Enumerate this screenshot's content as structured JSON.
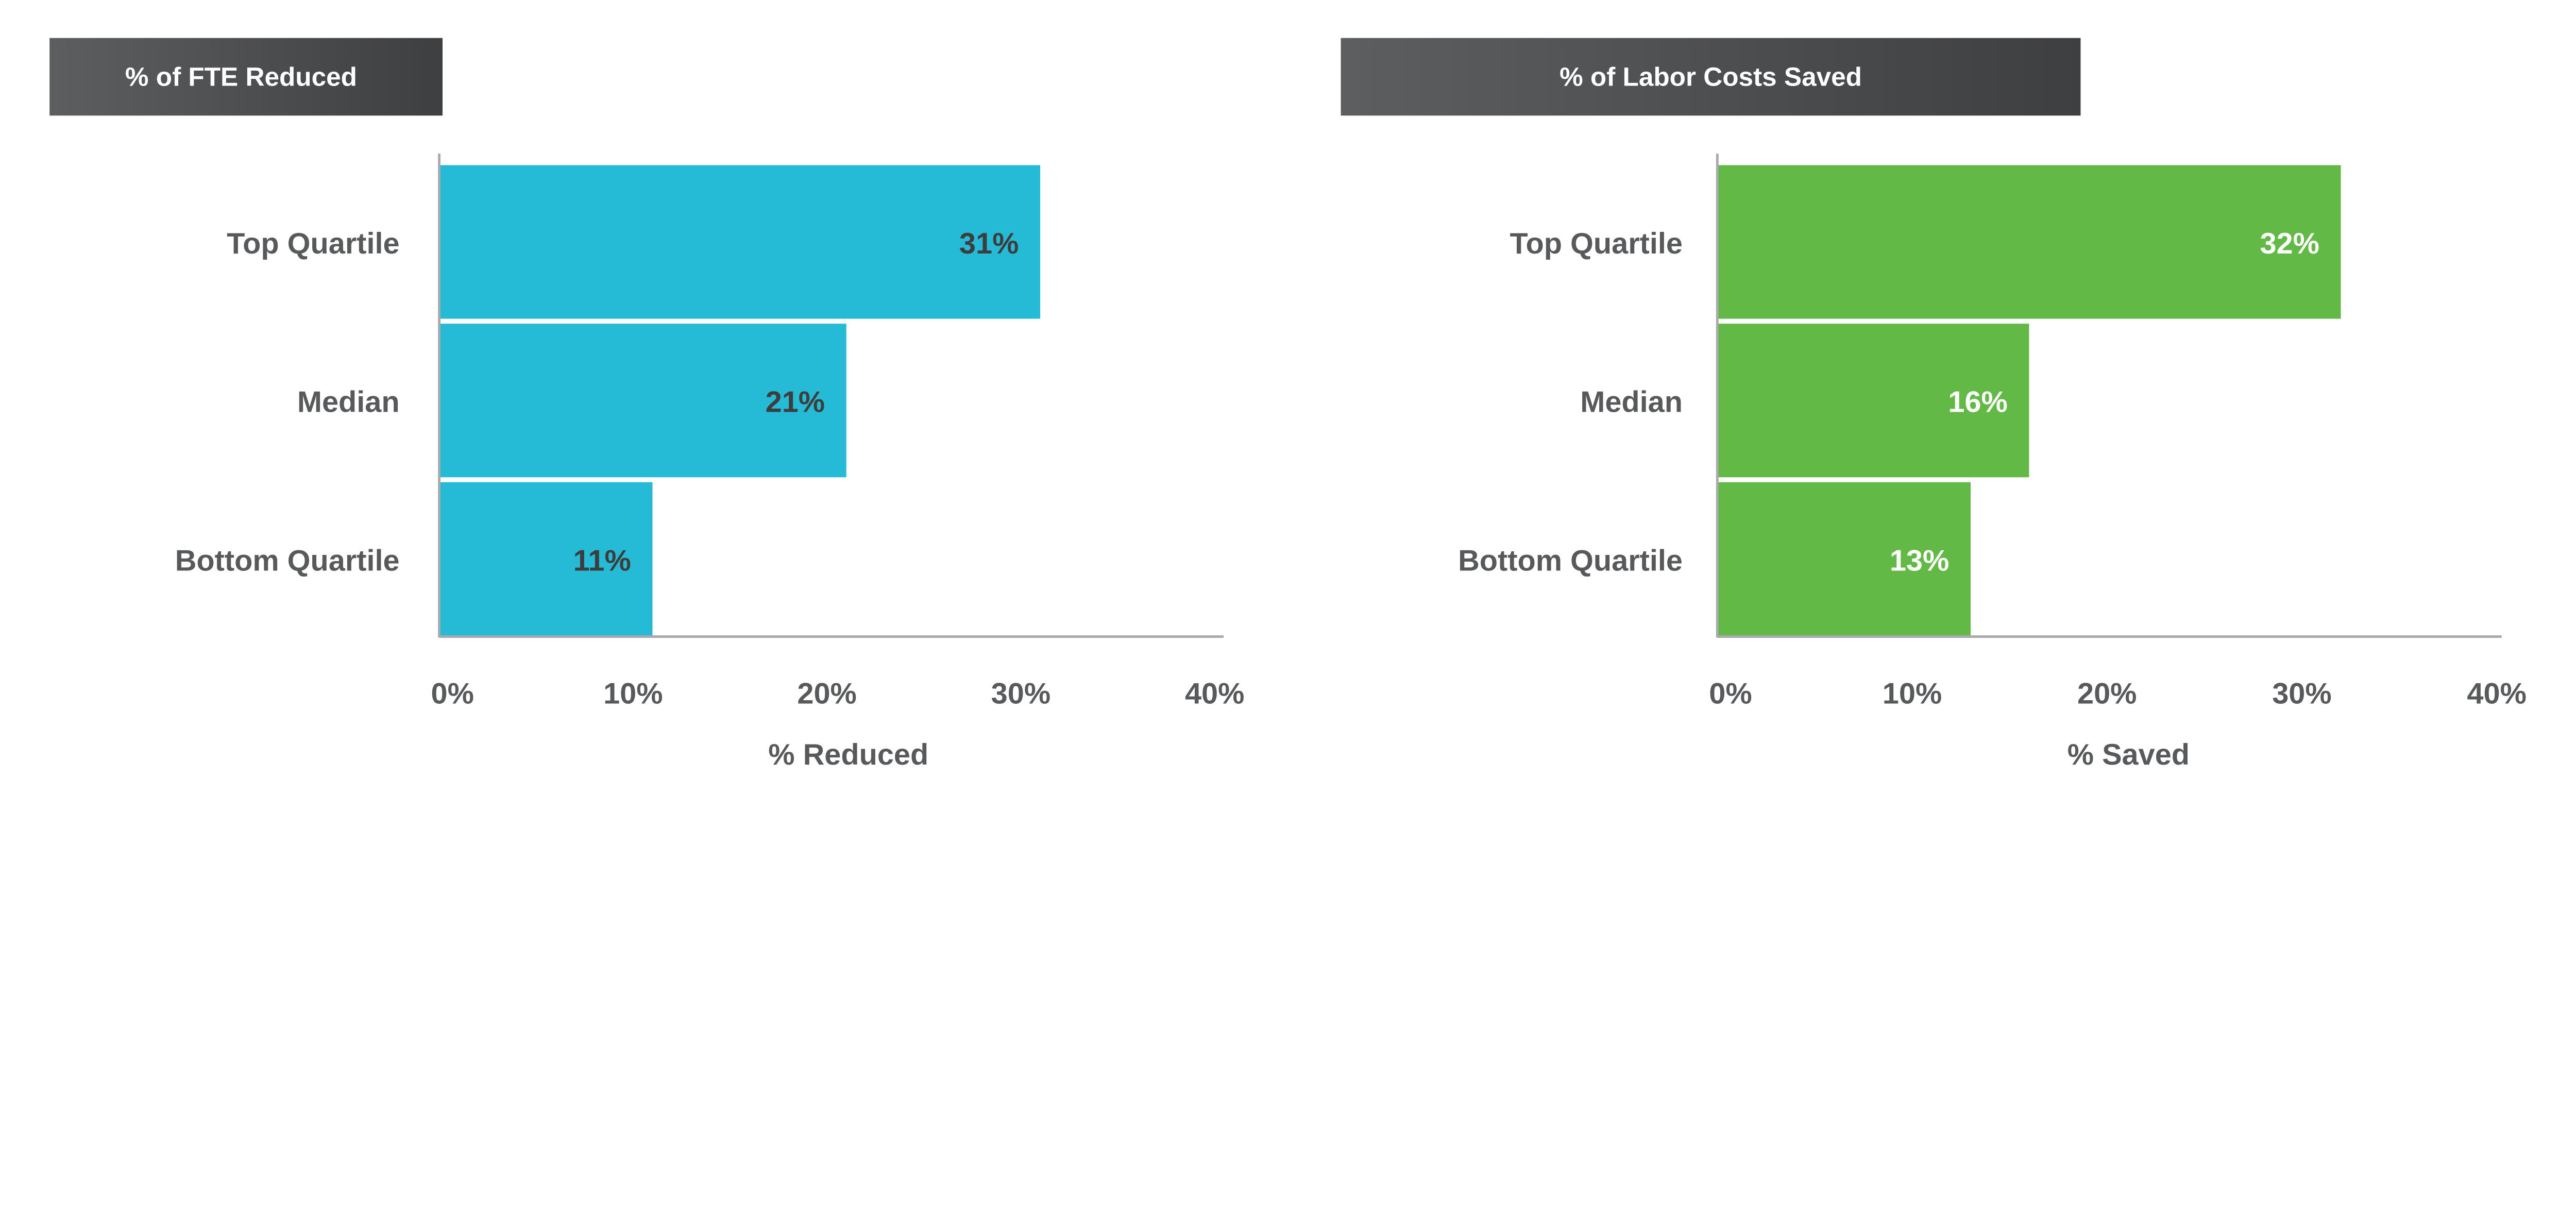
{
  "chart_data": [
    {
      "type": "bar",
      "orientation": "horizontal",
      "title": "% of FTE Reduced",
      "categories": [
        "Top Quartile",
        "Median",
        "Bottom Quartile"
      ],
      "values": [
        31,
        21,
        11
      ],
      "data_labels": [
        "31%",
        "21%",
        "11%"
      ],
      "xlabel": "% Reduced",
      "ylabel": "",
      "xlim": [
        0,
        40
      ],
      "xticks": [
        "0%",
        "10%",
        "20%",
        "30%",
        "40%"
      ],
      "grid": false,
      "bar_color": "#25bbd7",
      "label_color": "#3d3d3d"
    },
    {
      "type": "bar",
      "orientation": "horizontal",
      "title": "% of Labor Costs Saved",
      "categories": [
        "Top Quartile",
        "Median",
        "Bottom Quartile"
      ],
      "values": [
        32,
        16,
        13
      ],
      "data_labels": [
        "32%",
        "16%",
        "13%"
      ],
      "xlabel": "% Saved",
      "ylabel": "",
      "xlim": [
        0,
        40
      ],
      "xticks": [
        "0%",
        "10%",
        "20%",
        "30%",
        "40%"
      ],
      "grid": false,
      "bar_color": "#63b946",
      "label_color": "#ffffff"
    }
  ]
}
